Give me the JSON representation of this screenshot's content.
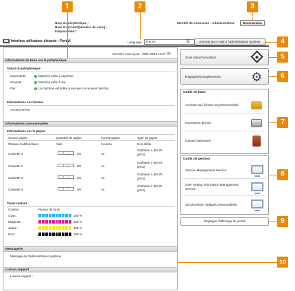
{
  "header": {
    "device_name_label": "Nom du périphérique :",
    "product_label": "Nom du produit(Numéro de série) :",
    "location_label": "Emplacement :",
    "id_connection": "Identité de connexion : Administrateur",
    "disconnect_label": "Déconnexion",
    "app_title": "Interface utilisateur distante : Portail",
    "language_label": "Language:",
    "language_value": "French",
    "email_btn_label": "Envoyer par e-mail à l'administrateur système"
  },
  "main": {
    "last_update": "Dernière mise à jour : 2021 06/10 14:0T",
    "basic_info": {
      "title": "Informations de base sur le périphérique",
      "status_title": "Statut du périphérique",
      "status_rows": [
        {
          "label": "Imprimante :",
          "value": "Machine prête à imprimer."
        },
        {
          "label": "Scanner :",
          "value": "Machine prête à lire."
        },
        {
          "label": "Fax :",
          "value": "La machine est prête à envoyer ou recevoir des fax."
        }
      ],
      "error_title": "Informations sur l'erreur",
      "error_value": "Aucune erreur."
    },
    "consumables": {
      "title": "Informations consommables",
      "paper_title": "Informations sur le papier",
      "columns": [
        "Source papier",
        "Quantité de papier",
        "Format papier",
        "Type de papier"
      ],
      "rows": [
        {
          "source": "Plateau multifonctions",
          "qty": "Vide",
          "format": "Inconnu",
          "type": "Non défini"
        },
        {
          "source": "Cassette 1",
          "qty": "OK",
          "format": "A4",
          "type": "Ordinaire 1 (64-75 g/m2)"
        },
        {
          "source": "Cassette 2",
          "qty": "OK",
          "format": "A4",
          "type": "Ordinaire 1 (64-75 g/m2)"
        },
        {
          "source": "Cassette 3",
          "qty": "OK",
          "format": "A4",
          "type": "Ordinaire 1 (64-75 g/m2)"
        },
        {
          "source": "Cassette 4",
          "qty": "OK",
          "format": "A4",
          "type": "Ordinaire 1 (64-75 g/m2)"
        }
      ],
      "toner_title": "Toner restant",
      "toner_columns": [
        "Couleur",
        "Niveau du toner"
      ],
      "toner_rows": [
        {
          "label": "Cyan :",
          "pct": "100 %",
          "color": "#29b6e8"
        },
        {
          "label": "Magenta :",
          "pct": "100 %",
          "color": "#e0199a"
        },
        {
          "label": "Jaune :",
          "pct": "100 %",
          "color": "#ffe600"
        },
        {
          "label": "Noir :",
          "pct": "100 %",
          "color": "#111111"
        }
      ]
    },
    "messaging": {
      "title": "Messagerie",
      "admin_msg_label": "Message de l'administrateur système :"
    },
    "support": {
      "title": "Liaison support",
      "label": "Liaison support :"
    }
  },
  "right": {
    "status_btn": "Suivi statut/Annulation",
    "settings_btn": "Réglages/Enregistrement",
    "basic_tools_title": "Outils de base",
    "basic_tools": [
      "Accéder aux fichiers reçus/mémorisés",
      "Impression directe",
      "Carnet d'adresses"
    ],
    "mgmt_tools_title": "Outils de gestion",
    "mgmt_tools": [
      "Service Management Service",
      "User Setting Information Management Service",
      "Synchroniser réglages personnalisés"
    ],
    "portal_display_link": "Réglages d'affichage du portail"
  },
  "callouts": [
    "1",
    "2",
    "3",
    "4",
    "5",
    "6",
    "7",
    "8",
    "9",
    "10"
  ],
  "colors": {
    "callout": "#e98a0a",
    "status_ok": "#3db34a"
  }
}
